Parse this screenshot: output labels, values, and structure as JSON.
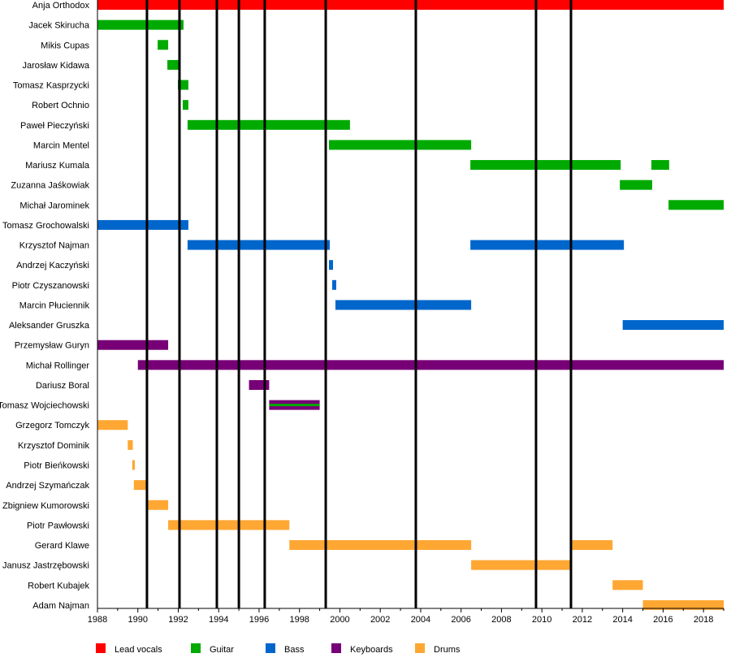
{
  "chart_data": {
    "type": "timeline",
    "xlim": [
      1988,
      2019
    ],
    "x_ticks": [
      1988,
      1990,
      1992,
      1994,
      1996,
      1998,
      2000,
      2002,
      2004,
      2006,
      2008,
      2010,
      2012,
      2014,
      2016,
      2018
    ],
    "grid": false,
    "legend_position": "bottom",
    "roles": [
      {
        "name": "Lead vocals",
        "color": "#ff0000"
      },
      {
        "name": "Guitar",
        "color": "#00aa00"
      },
      {
        "name": "Bass",
        "color": "#0066cc"
      },
      {
        "name": "Keyboards",
        "color": "#770077"
      },
      {
        "name": "Drums",
        "color": "#ffa733"
      }
    ],
    "markers": [
      1990.45,
      1992.06,
      1993.91,
      1995.0,
      1996.28,
      1999.3,
      2003.76,
      2009.71,
      2011.44
    ],
    "members": [
      {
        "name": "Anja Orthodox",
        "bars": [
          {
            "role": 0,
            "from": 1988,
            "to": 2019
          }
        ]
      },
      {
        "name": "Jacek Skirucha",
        "bars": [
          {
            "role": 1,
            "from": 1988,
            "to": 1992.26
          }
        ]
      },
      {
        "name": "Mikis Cupas",
        "bars": [
          {
            "role": 1,
            "from": 1990.98,
            "to": 1991.5
          }
        ]
      },
      {
        "name": "Jarosław Kidawa",
        "bars": [
          {
            "role": 1,
            "from": 1991.46,
            "to": 1992.02
          }
        ]
      },
      {
        "name": "Tomasz Kasprzycki",
        "bars": [
          {
            "role": 1,
            "from": 1991.98,
            "to": 1992.5
          }
        ]
      },
      {
        "name": "Robert Ochnio",
        "bars": [
          {
            "role": 1,
            "from": 1992.22,
            "to": 1992.5
          }
        ]
      },
      {
        "name": "Paweł Pieczyński",
        "bars": [
          {
            "role": 1,
            "from": 1992.46,
            "to": 2000.5
          }
        ]
      },
      {
        "name": "Marcin Mentel",
        "bars": [
          {
            "role": 1,
            "from": 1999.46,
            "to": 2006.5
          }
        ]
      },
      {
        "name": "Mariusz Kumala",
        "bars": [
          {
            "role": 1,
            "from": 2006.46,
            "to": 2013.9
          },
          {
            "role": 1,
            "from": 2015.42,
            "to": 2016.3
          }
        ]
      },
      {
        "name": "Zuzanna Jaśkowiak",
        "bars": [
          {
            "role": 1,
            "from": 2013.86,
            "to": 2015.46
          }
        ]
      },
      {
        "name": "Michał Jarominek",
        "bars": [
          {
            "role": 1,
            "from": 2016.27,
            "to": 2019
          }
        ]
      },
      {
        "name": "Tomasz Grochowalski",
        "bars": [
          {
            "role": 2,
            "from": 1988,
            "to": 1992.5
          }
        ]
      },
      {
        "name": "Krzysztof Najman",
        "bars": [
          {
            "role": 2,
            "from": 1992.46,
            "to": 1999.5
          },
          {
            "role": 2,
            "from": 2006.46,
            "to": 2014.06
          }
        ]
      },
      {
        "name": "Andrzej Kaczyński",
        "bars": [
          {
            "role": 2,
            "from": 1999.46,
            "to": 1999.66
          }
        ]
      },
      {
        "name": "Piotr Czyszanowski",
        "bars": [
          {
            "role": 2,
            "from": 1999.62,
            "to": 1999.82
          }
        ]
      },
      {
        "name": "Marcin Płuciennik",
        "bars": [
          {
            "role": 2,
            "from": 1999.78,
            "to": 2006.5
          }
        ]
      },
      {
        "name": "Aleksander Gruszka",
        "bars": [
          {
            "role": 2,
            "from": 2014.0,
            "to": 2019
          }
        ]
      },
      {
        "name": "Przemysław Guryn",
        "bars": [
          {
            "role": 3,
            "from": 1988,
            "to": 1991.5
          }
        ]
      },
      {
        "name": "Michał Rollinger",
        "bars": [
          {
            "role": 3,
            "from": 1990.0,
            "to": 2019
          }
        ]
      },
      {
        "name": "Dariusz Boral",
        "bars": [
          {
            "role": 3,
            "from": 1995.5,
            "to": 1996.5
          }
        ]
      },
      {
        "name": "Tomasz Wojciechowski",
        "bars": [
          {
            "role": 3,
            "from": 1996.5,
            "to": 1999.0
          },
          {
            "role": 1,
            "from": 1996.5,
            "to": 1999.0,
            "thin": true
          }
        ]
      },
      {
        "name": "Grzegorz Tomczyk",
        "bars": [
          {
            "role": 4,
            "from": 1988,
            "to": 1989.5
          }
        ]
      },
      {
        "name": "Krzysztof Dominik",
        "bars": [
          {
            "role": 4,
            "from": 1989.5,
            "to": 1989.75
          }
        ]
      },
      {
        "name": "Piotr Bieńkowski",
        "bars": [
          {
            "role": 4,
            "from": 1989.72,
            "to": 1989.85
          }
        ]
      },
      {
        "name": "Andrzej Szymańczak",
        "bars": [
          {
            "role": 4,
            "from": 1989.8,
            "to": 1990.5
          }
        ]
      },
      {
        "name": "Zbigniew Kumorowski",
        "bars": [
          {
            "role": 4,
            "from": 1990.5,
            "to": 1991.5
          }
        ]
      },
      {
        "name": "Piotr Pawłowski",
        "bars": [
          {
            "role": 4,
            "from": 1991.5,
            "to": 1997.5
          }
        ]
      },
      {
        "name": "Gerard Klawe",
        "bars": [
          {
            "role": 4,
            "from": 1997.5,
            "to": 2006.5
          },
          {
            "role": 4,
            "from": 2011.5,
            "to": 2013.5
          }
        ]
      },
      {
        "name": "Janusz Jastrzębowski",
        "bars": [
          {
            "role": 4,
            "from": 2006.5,
            "to": 2011.5
          }
        ]
      },
      {
        "name": "Robert Kubajek",
        "bars": [
          {
            "role": 4,
            "from": 2013.5,
            "to": 2015.0
          }
        ]
      },
      {
        "name": "Adam Najman",
        "bars": [
          {
            "role": 4,
            "from": 2015.0,
            "to": 2019
          }
        ]
      }
    ]
  }
}
